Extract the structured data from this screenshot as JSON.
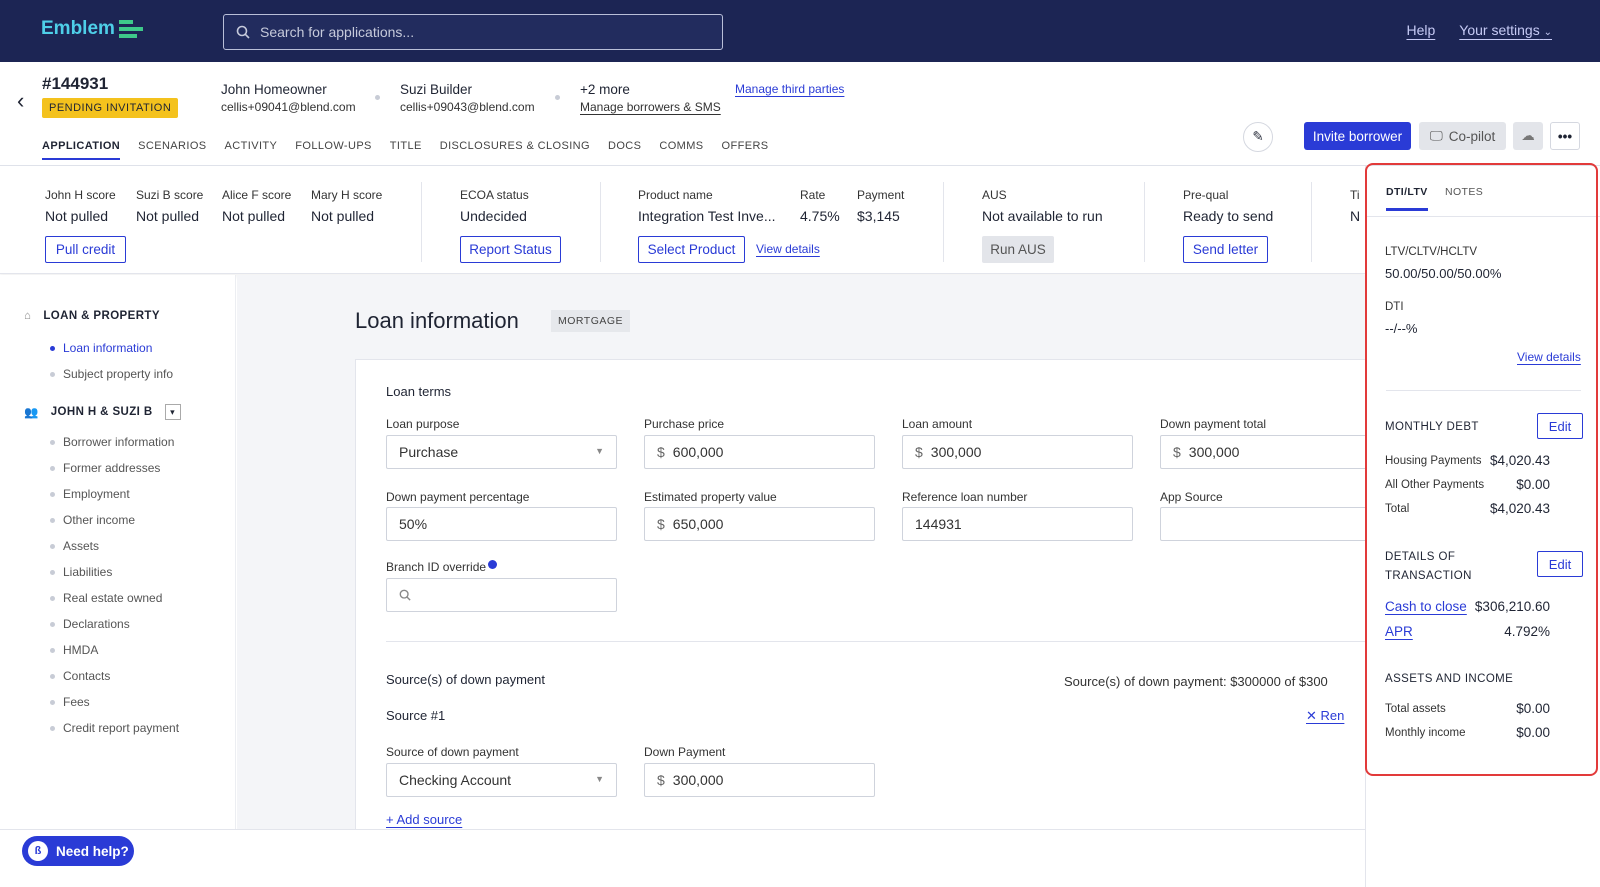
{
  "app": {
    "name": "Emblem"
  },
  "search": {
    "placeholder": "Search for applications..."
  },
  "topnav": {
    "help": "Help",
    "settings": "Your settings"
  },
  "loan": {
    "number": "#144931",
    "status": "PENDING INVITATION"
  },
  "parties": [
    {
      "name": "John Homeowner",
      "email": "cellis+09041@blend.com"
    },
    {
      "name": "Suzi Builder",
      "email": "cellis+09043@blend.com"
    }
  ],
  "more": {
    "label": "+2 more",
    "manage_borrowers": "Manage borrowers & SMS",
    "manage_third": "Manage third parties"
  },
  "tabs": [
    "APPLICATION",
    "SCENARIOS",
    "ACTIVITY",
    "FOLLOW-UPS",
    "TITLE",
    "DISCLOSURES & CLOSING",
    "DOCS",
    "COMMS",
    "OFFERS"
  ],
  "actions": {
    "invite": "Invite borrower",
    "copilot": "Co-pilot"
  },
  "summary": {
    "scores": [
      {
        "label": "John H score",
        "value": "Not pulled"
      },
      {
        "label": "Suzi B score",
        "value": "Not pulled"
      },
      {
        "label": "Alice F score",
        "value": "Not pulled"
      },
      {
        "label": "Mary H score",
        "value": "Not pulled"
      }
    ],
    "pull_credit": "Pull credit",
    "ecoa_label": "ECOA status",
    "ecoa_value": "Undecided",
    "report_status": "Report Status",
    "product_label": "Product name",
    "product_value": "Integration Test Inve...",
    "rate_label": "Rate",
    "rate_value": "4.75%",
    "payment_label": "Payment",
    "payment_value": "$3,145",
    "select_product": "Select Product",
    "view_details": "View details",
    "aus_label": "AUS",
    "aus_value": "Not available to run",
    "run_aus": "Run AUS",
    "prequal_label": "Pre-qual",
    "prequal_value": "Ready to send",
    "send_letter": "Send letter",
    "cut_label": "Ti",
    "cut_value": "N"
  },
  "sidebar": {
    "section1": "LOAN & PROPERTY",
    "section1_items": [
      "Loan information",
      "Subject property info"
    ],
    "section2": "JOHN H & SUZI B",
    "section2_items": [
      "Borrower information",
      "Former addresses",
      "Employment",
      "Other income",
      "Assets",
      "Liabilities",
      "Real estate owned",
      "Declarations",
      "HMDA",
      "Contacts",
      "Fees",
      "Credit report payment"
    ]
  },
  "page": {
    "title": "Loan information",
    "chip": "MORTGAGE"
  },
  "loan_terms": {
    "heading": "Loan terms",
    "loan_purpose": {
      "label": "Loan purpose",
      "value": "Purchase"
    },
    "purchase_price": {
      "label": "Purchase price",
      "value": "600,000"
    },
    "loan_amount": {
      "label": "Loan amount",
      "value": "300,000"
    },
    "down_payment_total": {
      "label": "Down payment total",
      "value": "300,000"
    },
    "down_payment_pct": {
      "label": "Down payment percentage",
      "value": "50%"
    },
    "est_value": {
      "label": "Estimated property value",
      "value": "650,000"
    },
    "ref_loan": {
      "label": "Reference loan number",
      "value": "144931"
    },
    "app_source": {
      "label": "App Source",
      "value": ""
    },
    "branch": {
      "label": "Branch ID override",
      "value": ""
    },
    "currency": "$"
  },
  "down_payment": {
    "heading": "Source(s) of down payment",
    "summary": "Source(s) of down payment: $300000 of $300",
    "source_heading": "Source #1",
    "remove": "Ren",
    "source_label": "Source of down payment",
    "source_value": "Checking Account",
    "dp_label": "Down Payment",
    "dp_value": "300,000",
    "add_source": "+ Add source"
  },
  "rpanel": {
    "tabs": [
      "DTI/LTV",
      "NOTES"
    ],
    "ltv_label": "LTV/CLTV/HCLTV",
    "ltv_value": "50.00/50.00/50.00%",
    "dti_label": "DTI",
    "dti_value": "--/--%",
    "view_details": "View details",
    "monthly_debt": "MONTHLY DEBT",
    "edit": "Edit",
    "housing_label": "Housing Payments",
    "housing_value": "$4,020.43",
    "other_label": "All Other Payments",
    "other_value": "$0.00",
    "total_label": "Total",
    "total_value": "$4,020.43",
    "details_line1": "DETAILS OF",
    "details_line2": "TRANSACTION",
    "cash_label": "Cash to close",
    "cash_value": "$306,210.60",
    "apr_label": "APR",
    "apr_value": "4.792%",
    "assets_heading": "ASSETS AND INCOME",
    "total_assets_label": "Total assets",
    "total_assets_value": "$0.00",
    "monthly_income_label": "Monthly income",
    "monthly_income_value": "$0.00"
  },
  "help": {
    "label": "Need help?"
  },
  "colors": {
    "nav": "#1c2554",
    "accent": "#2a3bd6",
    "badge": "#f4c21d",
    "highlight": "#e23a3a"
  }
}
